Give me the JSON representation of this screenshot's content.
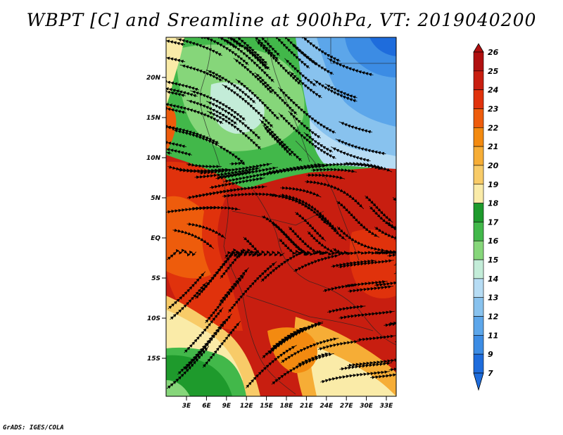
{
  "title": "WBPT [C] and Sreamline at 900hPa, VT: 2019040200",
  "credit": "GrADS: IGES/COLA",
  "map": {
    "lat_labels": [
      "20N",
      "15N",
      "10N",
      "5N",
      "EQ",
      "5S",
      "10S",
      "15S"
    ],
    "lon_labels": [
      "3E",
      "6E",
      "9E",
      "12E",
      "15E",
      "18E",
      "21E",
      "24E",
      "27E",
      "30E",
      "33E"
    ]
  },
  "colorbar": {
    "labels": [
      "26",
      "25",
      "24",
      "23",
      "22",
      "21",
      "20",
      "19",
      "18",
      "17",
      "16",
      "15",
      "14",
      "13",
      "12",
      "11",
      "9",
      "7"
    ],
    "colors": [
      "#b01010",
      "#c81e10",
      "#e0320c",
      "#ee5c0c",
      "#f38a10",
      "#f6ad36",
      "#f8cb68",
      "#faeba8",
      "#1e9a2c",
      "#42b84a",
      "#86d67a",
      "#c3ecd8",
      "#b6dcf4",
      "#88c2ee",
      "#5ca6ea",
      "#3c8ce4",
      "#1e6cdc"
    ]
  }
}
